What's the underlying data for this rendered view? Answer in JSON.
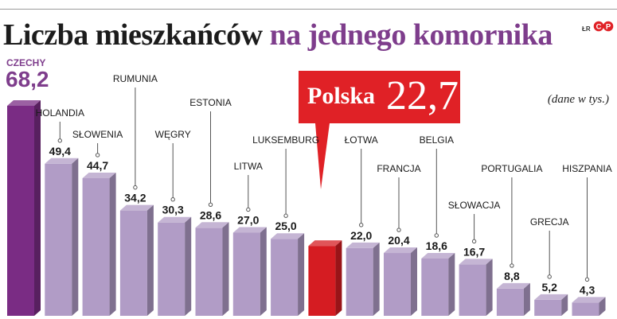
{
  "title": {
    "main": "Liczba mieszkańców",
    "accent": "na jednego komornika"
  },
  "credit": "ŁR",
  "logo_text": "CP",
  "units_note": "(dane w tys.)",
  "highlight": {
    "country": "Polska",
    "value_label": "22,7"
  },
  "top": {
    "country": "CZECHY",
    "value_label": "68,2"
  },
  "colors": {
    "bar": "#b19cc6",
    "bar_max": "#7a2c84",
    "bar_highlight": "#d51c22",
    "accent": "#7e3d8c"
  },
  "chart_data": {
    "type": "bar",
    "categories": [
      "CZECHY",
      "HOLANDIA",
      "SŁOWENIA",
      "RUMUNIA",
      "WĘGRY",
      "ESTONIA",
      "LITWA",
      "LUKSEMBURG",
      "POLSKA",
      "ŁOTWA",
      "FRANCJA",
      "BELGIA",
      "SŁOWACJA",
      "PORTUGALIA",
      "GRECJA",
      "HISZPANIA"
    ],
    "values": [
      68.2,
      49.4,
      44.7,
      34.2,
      30.3,
      28.6,
      27.0,
      25.0,
      22.7,
      22.0,
      20.4,
      18.6,
      16.7,
      8.8,
      5.2,
      4.3
    ],
    "labels": [
      "68,2",
      "49,4",
      "44,7",
      "34,2",
      "30,3",
      "28,6",
      "27,0",
      "25,0",
      "22,7",
      "22,0",
      "20,4",
      "18,6",
      "16,7",
      "8,8",
      "5,2",
      "4,3"
    ],
    "highlight_index": 8,
    "max_index": 0,
    "title": "Liczba mieszkańców na jednego komornika",
    "ylabel": "(dane w tys.)",
    "ylim": [
      0,
      68.2
    ],
    "grid": false
  }
}
